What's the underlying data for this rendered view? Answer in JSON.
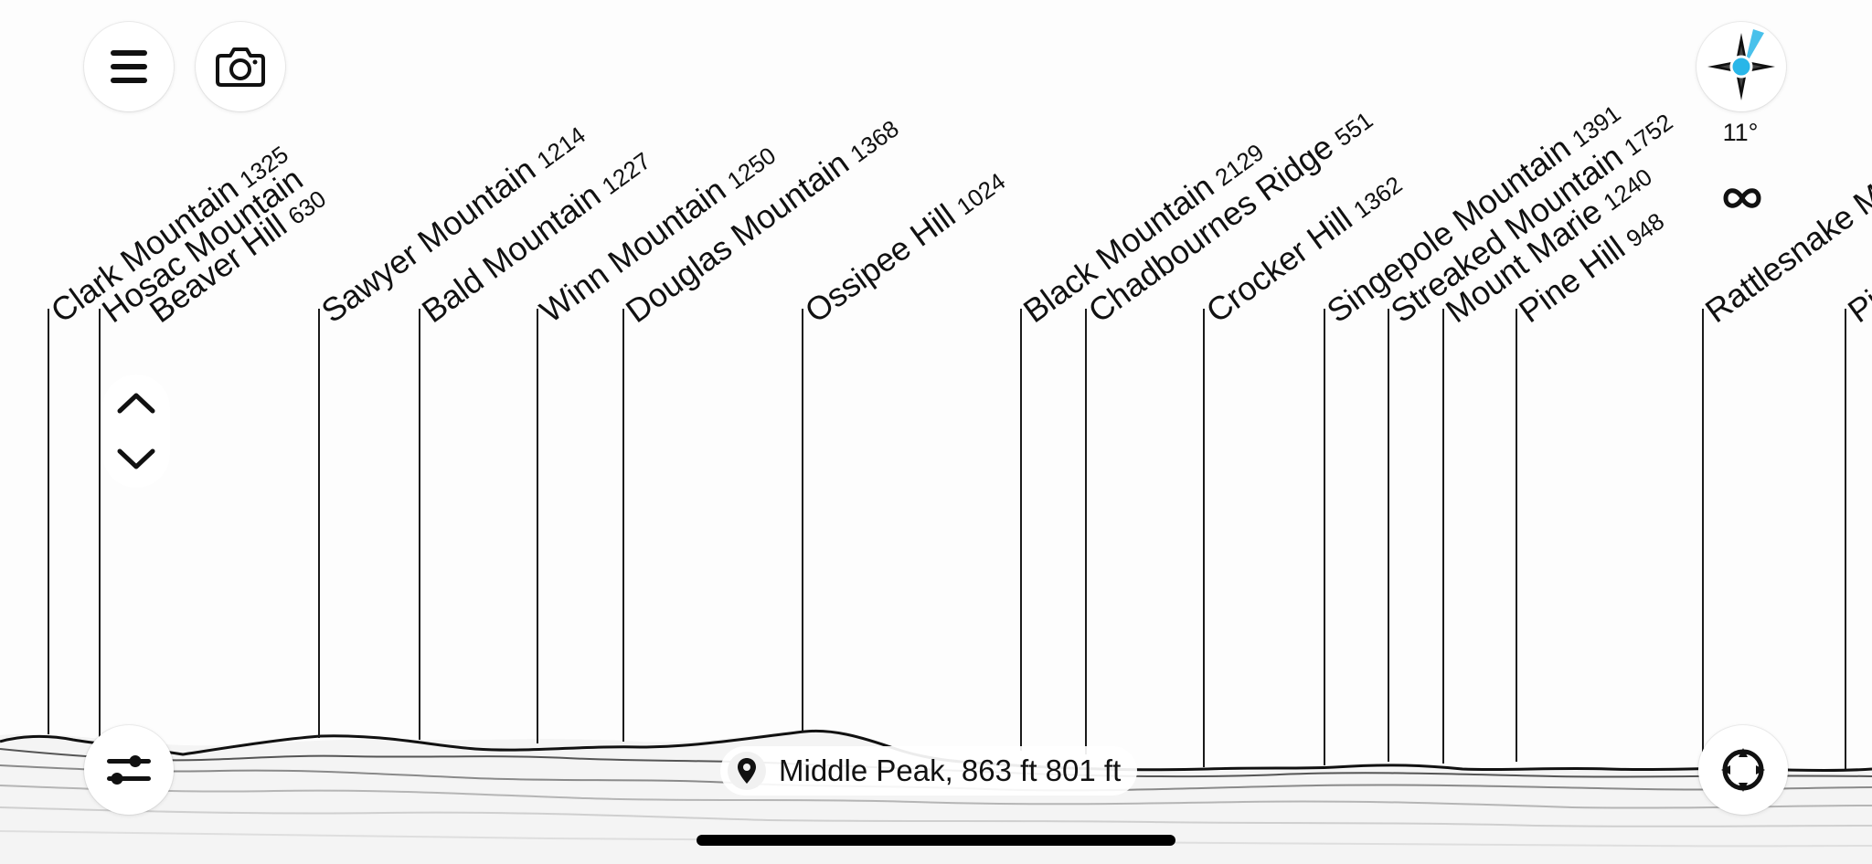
{
  "peaks": [
    {
      "name": "Clark Mountain",
      "elevation": "1325"
    },
    {
      "name": "Hosac Mountain",
      "elevation": ""
    },
    {
      "name": "Beaver Hill",
      "elevation": "630"
    },
    {
      "name": "Sawyer Mountain",
      "elevation": "1214"
    },
    {
      "name": "Bald Mountain",
      "elevation": "1227"
    },
    {
      "name": "Winn Mountain",
      "elevation": "1250"
    },
    {
      "name": "Douglas Mountain",
      "elevation": "1368"
    },
    {
      "name": "Ossipee Hill",
      "elevation": "1024"
    },
    {
      "name": "Black Mountain",
      "elevation": "2129"
    },
    {
      "name": "Chadbournes Ridge",
      "elevation": "551"
    },
    {
      "name": "Crocker Hill",
      "elevation": "1362"
    },
    {
      "name": "Singepole Mountain",
      "elevation": "1391"
    },
    {
      "name": "Streaked Mountain",
      "elevation": "1752"
    },
    {
      "name": "Mount Marie",
      "elevation": "1240"
    },
    {
      "name": "Pine Hill",
      "elevation": "948"
    },
    {
      "name": "Rattlesnake Mountain",
      "elevation": ""
    },
    {
      "name": "Pisgah",
      "elevation": ""
    }
  ],
  "compass": {
    "heading": "11°"
  },
  "location": {
    "label": "Middle Peak, 863 ft 801 ft"
  },
  "icons": {
    "menu": "hamburger-menu-icon",
    "camera": "camera-icon",
    "compass": "compass-icon",
    "infinity": "infinity-icon",
    "up": "chevron-up-icon",
    "down": "chevron-down-icon",
    "filters": "sliders-icon",
    "location": "map-pin-icon",
    "recenter": "target-icon"
  },
  "colors": {
    "compass_accent": "#29b6e8",
    "lines": "#1a1a1a"
  }
}
